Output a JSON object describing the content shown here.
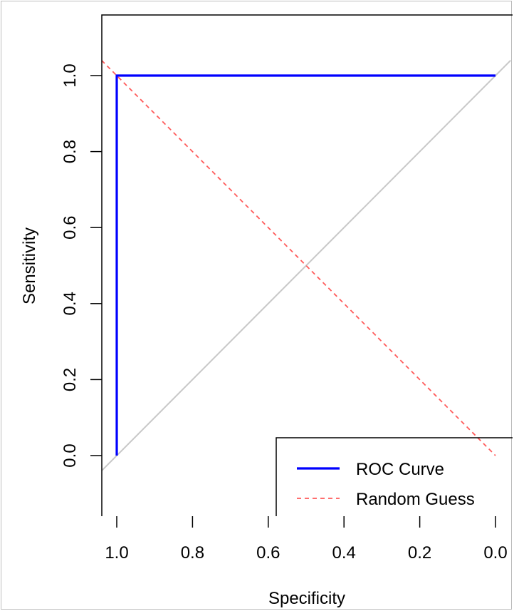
{
  "chart_data": {
    "type": "line",
    "title": "",
    "xlabel": "Specificity",
    "ylabel": "Sensitivity",
    "x_axis_reversed": true,
    "xlim": [
      1.0,
      0.0
    ],
    "ylim": [
      0.0,
      1.0
    ],
    "xticks": [
      1.0,
      0.8,
      0.6,
      0.4,
      0.2,
      0.0
    ],
    "xtick_labels": [
      "1.0",
      "0.8",
      "0.6",
      "0.4",
      "0.2",
      "0.0"
    ],
    "yticks": [
      0.0,
      0.2,
      0.4,
      0.6,
      0.8,
      1.0
    ],
    "ytick_labels": [
      "0.0",
      "0.2",
      "0.4",
      "0.6",
      "0.8",
      "1.0"
    ],
    "grid": false,
    "legend_position": "bottom-right",
    "series": [
      {
        "name": "ROC Curve",
        "color": "#0000ff",
        "line_style": "solid",
        "x": [
          1.0,
          1.0,
          0.0
        ],
        "y": [
          0.0,
          1.0,
          1.0
        ]
      },
      {
        "name": "Random Guess",
        "color": "#ff5a5a",
        "line_style": "dashed",
        "x": [
          1.04,
          0.0
        ],
        "y": [
          1.04,
          0.0
        ]
      }
    ],
    "reference_line": {
      "color": "#c8c8c8",
      "x": [
        1.04,
        -0.04
      ],
      "y": [
        -0.04,
        1.04
      ]
    }
  }
}
